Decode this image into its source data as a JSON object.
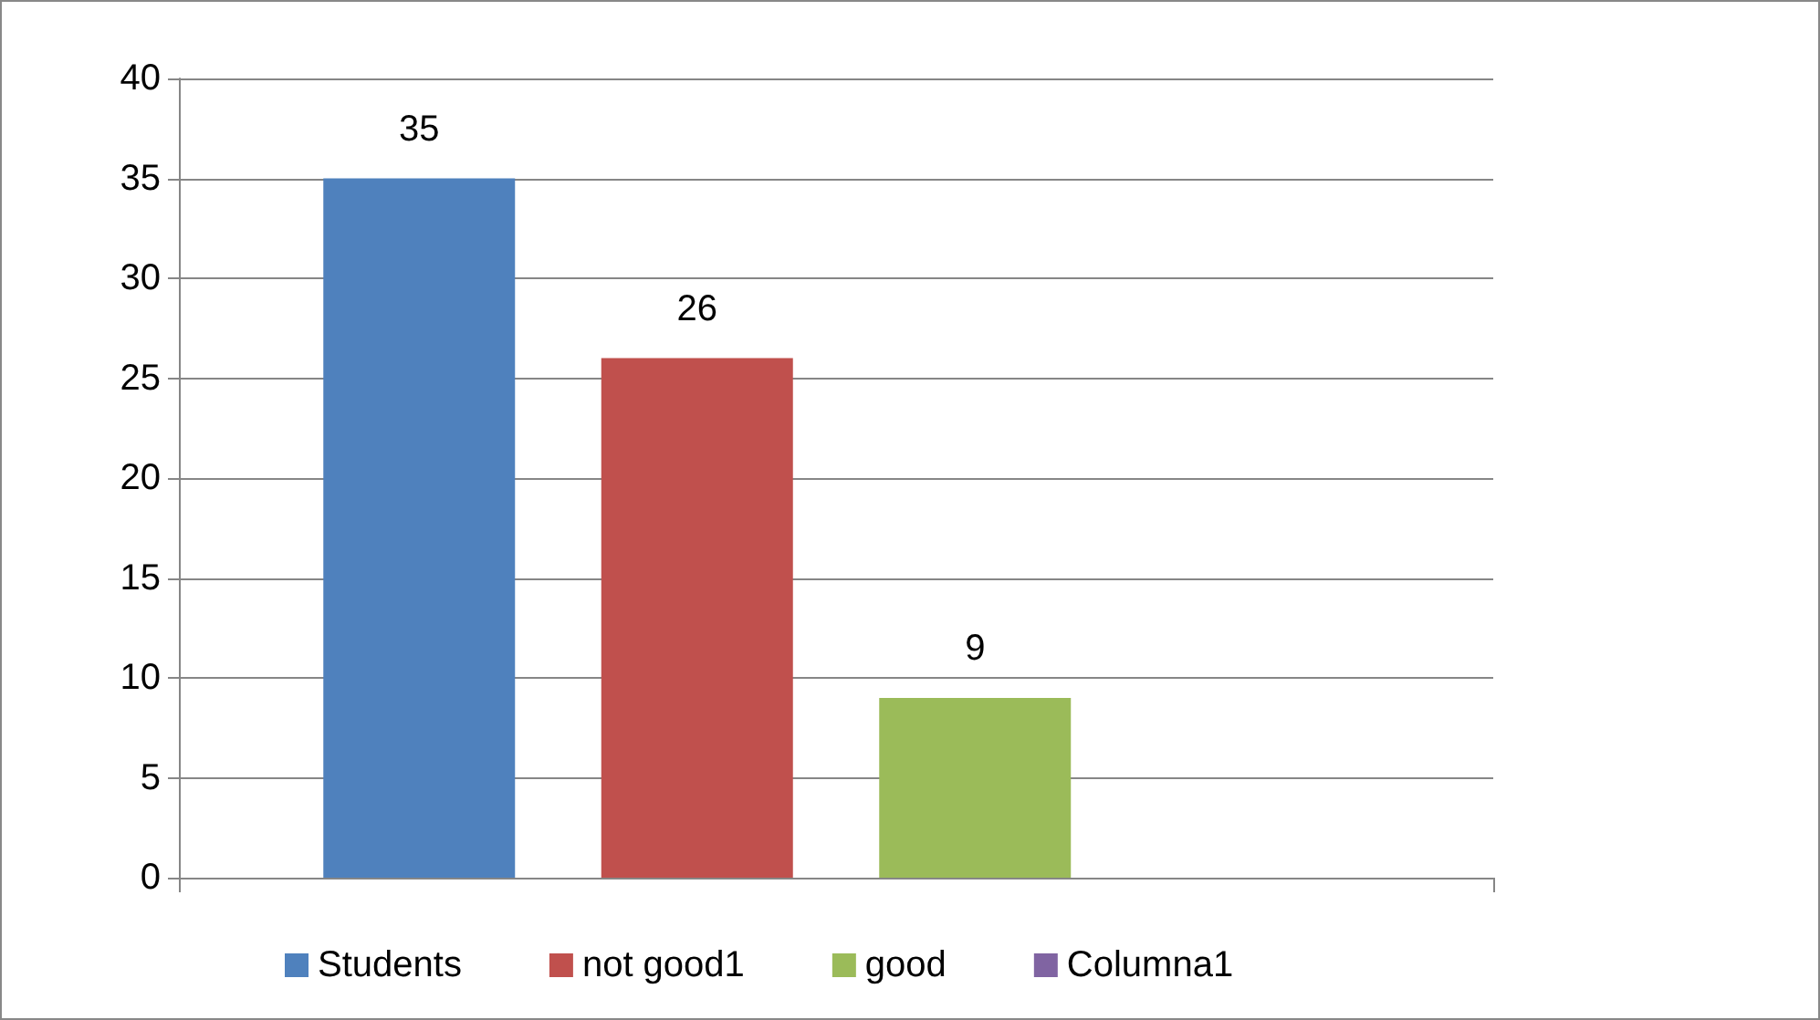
{
  "chart_data": {
    "type": "bar",
    "categories": [
      null
    ],
    "series": [
      {
        "name": "Students",
        "color": "#4f81bd",
        "values": [
          35
        ]
      },
      {
        "name": "not good1",
        "color": "#c0504d",
        "values": [
          26
        ]
      },
      {
        "name": "good",
        "color": "#9bbb59",
        "values": [
          9
        ]
      },
      {
        "name": "Columna1",
        "color": "#8064a2",
        "values": [
          null
        ]
      }
    ],
    "ylim": [
      0,
      40
    ],
    "yticks": [
      0,
      5,
      10,
      15,
      20,
      25,
      30,
      35,
      40
    ],
    "grid": "y",
    "legend": "bottom",
    "data_labels": true
  }
}
